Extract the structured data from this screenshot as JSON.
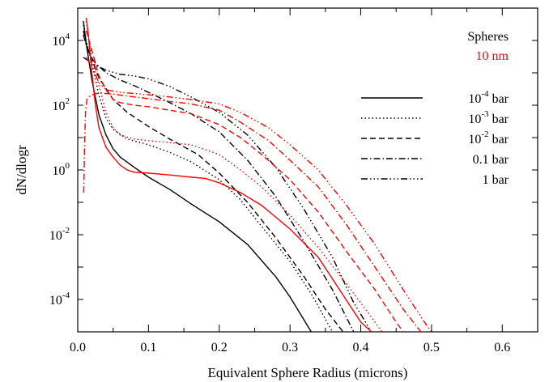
{
  "chart_data": {
    "type": "line",
    "xlabel": "Equivalent Sphere Radius (microns)",
    "ylabel": "dN/dlogr",
    "xlim": [
      0,
      0.65
    ],
    "ylim": [
      1e-05,
      100000.0
    ],
    "yscale": "log",
    "xticks": [
      0.0,
      0.1,
      0.2,
      0.3,
      0.4,
      0.5,
      0.6
    ],
    "xtick_labels": [
      "0.0",
      "0.1",
      "0.2",
      "0.3",
      "0.4",
      "0.5",
      "0.6"
    ],
    "yticks": [
      {
        "value": 10000.0,
        "base": "10",
        "exp": "4"
      },
      {
        "value": 100.0,
        "base": "10",
        "exp": "2"
      },
      {
        "value": 1.0,
        "base": "10",
        "exp": "0"
      },
      {
        "value": 0.01,
        "base": "10",
        "exp": "-2"
      },
      {
        "value": 0.0001,
        "base": "10",
        "exp": "-4"
      }
    ],
    "grid": false,
    "legend": {
      "placement": "top-right",
      "title_lines": [
        {
          "text": "Spheres",
          "color": "#000000"
        },
        {
          "text": "10 nm",
          "color": "#ff0000"
        }
      ],
      "entries": [
        {
          "base": "10",
          "exp": "-4",
          "unit": "bar",
          "dash": "solid"
        },
        {
          "base": "10",
          "exp": "-3",
          "unit": "bar",
          "dash": "dotted"
        },
        {
          "base": "10",
          "exp": "-2",
          "unit": "bar",
          "dash": "dashed"
        },
        {
          "text": "0.1 bar",
          "dash": "dashdot"
        },
        {
          "text": "1 bar",
          "dash": "dashdotdotdot"
        }
      ]
    },
    "colors": {
      "black": "#000000",
      "red": "#ff0000"
    },
    "series": [
      {
        "color": "#000000",
        "dash": "solid",
        "points": [
          [
            0.008,
            40000
          ],
          [
            0.012,
            8000
          ],
          [
            0.02,
            600
          ],
          [
            0.03,
            50
          ],
          [
            0.04,
            12
          ],
          [
            0.05,
            4.5
          ],
          [
            0.06,
            2.5
          ],
          [
            0.08,
            1.2
          ],
          [
            0.1,
            0.6
          ],
          [
            0.13,
            0.25
          ],
          [
            0.16,
            0.09
          ],
          [
            0.2,
            0.025
          ],
          [
            0.24,
            0.005
          ],
          [
            0.28,
            0.0005
          ],
          [
            0.3,
            0.00012
          ],
          [
            0.33,
            1e-05
          ]
        ]
      },
      {
        "color": "#000000",
        "dash": "dotted",
        "points": [
          [
            0.008,
            30000
          ],
          [
            0.012,
            10000
          ],
          [
            0.02,
            2000
          ],
          [
            0.03,
            200
          ],
          [
            0.04,
            40
          ],
          [
            0.05,
            18
          ],
          [
            0.07,
            9
          ],
          [
            0.1,
            6
          ],
          [
            0.13,
            3.5
          ],
          [
            0.16,
            1.8
          ],
          [
            0.2,
            0.5
          ],
          [
            0.23,
            0.12
          ],
          [
            0.26,
            0.018
          ],
          [
            0.3,
            0.0015
          ],
          [
            0.33,
            0.00015
          ],
          [
            0.36,
            1e-05
          ]
        ]
      },
      {
        "color": "#000000",
        "dash": "dashed",
        "points": [
          [
            0.008,
            20000
          ],
          [
            0.012,
            8000
          ],
          [
            0.02,
            2500
          ],
          [
            0.03,
            700
          ],
          [
            0.05,
            150
          ],
          [
            0.07,
            60
          ],
          [
            0.1,
            22
          ],
          [
            0.13,
            9
          ],
          [
            0.17,
            3
          ],
          [
            0.2,
            0.8
          ],
          [
            0.24,
            0.1
          ],
          [
            0.28,
            0.008
          ],
          [
            0.32,
            0.0005
          ],
          [
            0.35,
            5e-05
          ],
          [
            0.375,
            1e-05
          ]
        ]
      },
      {
        "color": "#000000",
        "dash": "dashdot",
        "points": [
          [
            0.008,
            15000
          ],
          [
            0.015,
            4000
          ],
          [
            0.025,
            2000
          ],
          [
            0.04,
            1000
          ],
          [
            0.06,
            600
          ],
          [
            0.08,
            400
          ],
          [
            0.1,
            250
          ],
          [
            0.13,
            120
          ],
          [
            0.16,
            55
          ],
          [
            0.2,
            15
          ],
          [
            0.24,
            2
          ],
          [
            0.28,
            0.15
          ],
          [
            0.32,
            0.006
          ],
          [
            0.36,
            0.0002
          ],
          [
            0.39,
            1e-05
          ]
        ]
      },
      {
        "color": "#000000",
        "dash": "dashdotdotdot",
        "points": [
          [
            0.008,
            3000
          ],
          [
            0.02,
            2000
          ],
          [
            0.04,
            1200
          ],
          [
            0.06,
            900
          ],
          [
            0.08,
            800
          ],
          [
            0.1,
            650
          ],
          [
            0.13,
            380
          ],
          [
            0.16,
            180
          ],
          [
            0.2,
            60
          ],
          [
            0.24,
            12
          ],
          [
            0.28,
            1.2
          ],
          [
            0.32,
            0.06
          ],
          [
            0.36,
            0.002
          ],
          [
            0.39,
            8e-05
          ],
          [
            0.415,
            1e-05
          ]
        ]
      },
      {
        "color": "#ff0000",
        "dash": "solid",
        "points": [
          [
            0.012,
            50000
          ],
          [
            0.015,
            15000
          ],
          [
            0.02,
            1000
          ],
          [
            0.025,
            100
          ],
          [
            0.03,
            20
          ],
          [
            0.04,
            5
          ],
          [
            0.05,
            2.5
          ],
          [
            0.06,
            1.4
          ],
          [
            0.07,
            1.0
          ],
          [
            0.08,
            0.85
          ],
          [
            0.1,
            0.8
          ],
          [
            0.13,
            0.7
          ],
          [
            0.16,
            0.6
          ],
          [
            0.18,
            0.55
          ],
          [
            0.2,
            0.4
          ],
          [
            0.23,
            0.2
          ],
          [
            0.26,
            0.08
          ],
          [
            0.3,
            0.015
          ],
          [
            0.34,
            0.002
          ],
          [
            0.37,
            0.0002
          ],
          [
            0.4,
            2e-05
          ],
          [
            0.415,
            1e-05
          ]
        ]
      },
      {
        "color": "#ff0000",
        "dash": "dotted",
        "points": [
          [
            0.012,
            40000
          ],
          [
            0.016,
            10000
          ],
          [
            0.02,
            3000
          ],
          [
            0.03,
            400
          ],
          [
            0.04,
            60
          ],
          [
            0.05,
            20
          ],
          [
            0.06,
            12
          ],
          [
            0.08,
            9
          ],
          [
            0.1,
            8
          ],
          [
            0.13,
            7
          ],
          [
            0.16,
            6
          ],
          [
            0.2,
            3
          ],
          [
            0.23,
            1
          ],
          [
            0.26,
            0.3
          ],
          [
            0.3,
            0.04
          ],
          [
            0.34,
            0.004
          ],
          [
            0.38,
            0.0003
          ],
          [
            0.41,
            4e-05
          ],
          [
            0.43,
            1e-05
          ]
        ]
      },
      {
        "color": "#ff0000",
        "dash": "dashed",
        "points": [
          [
            0.012,
            20000
          ],
          [
            0.02,
            5000
          ],
          [
            0.03,
            800
          ],
          [
            0.04,
            300
          ],
          [
            0.05,
            150
          ],
          [
            0.06,
            120
          ],
          [
            0.08,
            100
          ],
          [
            0.1,
            90
          ],
          [
            0.13,
            70
          ],
          [
            0.16,
            55
          ],
          [
            0.2,
            25
          ],
          [
            0.23,
            10
          ],
          [
            0.26,
            3
          ],
          [
            0.3,
            0.5
          ],
          [
            0.34,
            0.05
          ],
          [
            0.38,
            0.003
          ],
          [
            0.42,
            0.0002
          ],
          [
            0.45,
            2e-05
          ],
          [
            0.46,
            1e-05
          ]
        ]
      },
      {
        "color": "#ff0000",
        "dash": "dashdot",
        "points": [
          [
            0.0085,
            0.2
          ],
          [
            0.0095,
            4
          ],
          [
            0.011,
            60
          ],
          [
            0.013,
            150
          ],
          [
            0.018,
            200
          ],
          [
            0.03,
            240
          ],
          [
            0.05,
            220
          ],
          [
            0.08,
            180
          ],
          [
            0.1,
            160
          ],
          [
            0.13,
            130
          ],
          [
            0.16,
            110
          ],
          [
            0.2,
            70
          ],
          [
            0.23,
            30
          ],
          [
            0.27,
            8
          ],
          [
            0.3,
            2
          ],
          [
            0.34,
            0.3
          ],
          [
            0.38,
            0.02
          ],
          [
            0.42,
            0.001
          ],
          [
            0.46,
            5e-05
          ],
          [
            0.485,
            1e-05
          ]
        ]
      },
      {
        "color": "#ff0000",
        "dash": "dashdotdotdot",
        "points": [
          [
            0.012,
            3000
          ],
          [
            0.02,
            1500
          ],
          [
            0.03,
            500
          ],
          [
            0.04,
            300
          ],
          [
            0.06,
            250
          ],
          [
            0.08,
            230
          ],
          [
            0.1,
            210
          ],
          [
            0.13,
            180
          ],
          [
            0.16,
            150
          ],
          [
            0.2,
            110
          ],
          [
            0.23,
            60
          ],
          [
            0.27,
            20
          ],
          [
            0.3,
            6
          ],
          [
            0.34,
            1
          ],
          [
            0.38,
            0.08
          ],
          [
            0.42,
            0.005
          ],
          [
            0.46,
            0.0002
          ],
          [
            0.49,
            2e-05
          ],
          [
            0.5,
            1e-05
          ]
        ]
      }
    ]
  }
}
